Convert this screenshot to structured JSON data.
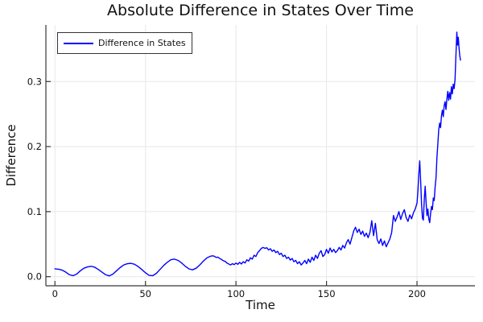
{
  "title": "Absolute Difference in States Over Time",
  "colors": {
    "series_line": "#0000ff",
    "grid": "#e7e7e7",
    "spine": "#36363a",
    "text": "#111111",
    "legend_border": "#333333",
    "background": "#ffffff"
  },
  "chart_data": {
    "type": "line",
    "title": "Absolute Difference in States Over Time",
    "xlabel": "Time",
    "ylabel": "Difference",
    "xlim": [
      -5,
      232
    ],
    "ylim": [
      -0.014,
      0.387
    ],
    "xticks": [
      0,
      50,
      100,
      150,
      200
    ],
    "xtick_labels": [
      "0",
      "50",
      "100",
      "150",
      "200"
    ],
    "yticks": [
      0.0,
      0.1,
      0.2,
      0.3
    ],
    "ytick_labels": [
      "0.0",
      "0.1",
      "0.2",
      "0.3"
    ],
    "grid": true,
    "legend_position": "top-left",
    "series": [
      {
        "name": "Difference in States",
        "color": "#0000ff",
        "points": [
          [
            0,
            0.012
          ],
          [
            2,
            0.0115
          ],
          [
            4,
            0.01
          ],
          [
            6,
            0.007
          ],
          [
            8,
            0.003
          ],
          [
            10,
            0.0015
          ],
          [
            12,
            0.004
          ],
          [
            14,
            0.009
          ],
          [
            16,
            0.013
          ],
          [
            18,
            0.015
          ],
          [
            20,
            0.016
          ],
          [
            22,
            0.0145
          ],
          [
            24,
            0.011
          ],
          [
            26,
            0.007
          ],
          [
            28,
            0.003
          ],
          [
            30,
            0.0012
          ],
          [
            32,
            0.004
          ],
          [
            34,
            0.009
          ],
          [
            36,
            0.014
          ],
          [
            38,
            0.018
          ],
          [
            40,
            0.02
          ],
          [
            42,
            0.0205
          ],
          [
            44,
            0.019
          ],
          [
            46,
            0.0155
          ],
          [
            48,
            0.011
          ],
          [
            50,
            0.006
          ],
          [
            52,
            0.002
          ],
          [
            54,
            0.0015
          ],
          [
            56,
            0.005
          ],
          [
            58,
            0.011
          ],
          [
            60,
            0.017
          ],
          [
            62,
            0.022
          ],
          [
            64,
            0.026
          ],
          [
            66,
            0.027
          ],
          [
            68,
            0.025
          ],
          [
            70,
            0.021
          ],
          [
            72,
            0.016
          ],
          [
            74,
            0.012
          ],
          [
            76,
            0.0105
          ],
          [
            78,
            0.013
          ],
          [
            80,
            0.018
          ],
          [
            82,
            0.024
          ],
          [
            84,
            0.029
          ],
          [
            86,
            0.0315
          ],
          [
            87,
            0.032
          ],
          [
            88,
            0.0315
          ],
          [
            89,
            0.0295
          ],
          [
            90,
            0.03
          ],
          [
            91,
            0.028
          ],
          [
            92,
            0.0265
          ],
          [
            93,
            0.0245
          ],
          [
            94,
            0.0235
          ],
          [
            95,
            0.021
          ],
          [
            96,
            0.0195
          ],
          [
            97,
            0.018
          ],
          [
            98,
            0.02
          ],
          [
            99,
            0.0185
          ],
          [
            100,
            0.021
          ],
          [
            101,
            0.019
          ],
          [
            102,
            0.022
          ],
          [
            103,
            0.0195
          ],
          [
            104,
            0.023
          ],
          [
            105,
            0.021
          ],
          [
            106,
            0.026
          ],
          [
            107,
            0.024
          ],
          [
            108,
            0.029
          ],
          [
            109,
            0.027
          ],
          [
            110,
            0.033
          ],
          [
            111,
            0.031
          ],
          [
            112,
            0.037
          ],
          [
            113,
            0.04
          ],
          [
            114,
            0.0435
          ],
          [
            115,
            0.045
          ],
          [
            116,
            0.0435
          ],
          [
            117,
            0.0445
          ],
          [
            118,
            0.041
          ],
          [
            119,
            0.043
          ],
          [
            120,
            0.039
          ],
          [
            121,
            0.041
          ],
          [
            122,
            0.037
          ],
          [
            123,
            0.039
          ],
          [
            124,
            0.034
          ],
          [
            125,
            0.036
          ],
          [
            126,
            0.031
          ],
          [
            127,
            0.033
          ],
          [
            128,
            0.028
          ],
          [
            129,
            0.03
          ],
          [
            130,
            0.0255
          ],
          [
            131,
            0.028
          ],
          [
            132,
            0.023
          ],
          [
            133,
            0.025
          ],
          [
            134,
            0.02
          ],
          [
            135,
            0.023
          ],
          [
            136,
            0.018
          ],
          [
            137,
            0.021
          ],
          [
            138,
            0.025
          ],
          [
            139,
            0.02
          ],
          [
            140,
            0.027
          ],
          [
            141,
            0.022
          ],
          [
            142,
            0.03
          ],
          [
            143,
            0.025
          ],
          [
            144,
            0.033
          ],
          [
            145,
            0.028
          ],
          [
            146,
            0.036
          ],
          [
            147,
            0.04
          ],
          [
            148,
            0.031
          ],
          [
            149,
            0.034
          ],
          [
            150,
            0.042
          ],
          [
            151,
            0.036
          ],
          [
            152,
            0.044
          ],
          [
            153,
            0.038
          ],
          [
            154,
            0.042
          ],
          [
            155,
            0.037
          ],
          [
            156,
            0.04
          ],
          [
            157,
            0.045
          ],
          [
            158,
            0.041
          ],
          [
            159,
            0.048
          ],
          [
            160,
            0.044
          ],
          [
            161,
            0.052
          ],
          [
            162,
            0.057
          ],
          [
            163,
            0.05
          ],
          [
            164,
            0.06
          ],
          [
            165,
            0.07
          ],
          [
            166,
            0.076
          ],
          [
            167,
            0.068
          ],
          [
            168,
            0.073
          ],
          [
            169,
            0.065
          ],
          [
            170,
            0.07
          ],
          [
            171,
            0.062
          ],
          [
            172,
            0.067
          ],
          [
            173,
            0.06
          ],
          [
            174,
            0.068
          ],
          [
            175,
            0.086
          ],
          [
            176,
            0.063
          ],
          [
            177,
            0.082
          ],
          [
            178,
            0.057
          ],
          [
            179,
            0.051
          ],
          [
            180,
            0.058
          ],
          [
            181,
            0.048
          ],
          [
            182,
            0.055
          ],
          [
            183,
            0.046
          ],
          [
            184,
            0.052
          ],
          [
            185,
            0.058
          ],
          [
            186,
            0.068
          ],
          [
            187,
            0.094
          ],
          [
            188,
            0.085
          ],
          [
            189,
            0.092
          ],
          [
            190,
            0.1
          ],
          [
            191,
            0.088
          ],
          [
            192,
            0.097
          ],
          [
            193,
            0.103
          ],
          [
            194,
            0.091
          ],
          [
            195,
            0.085
          ],
          [
            196,
            0.095
          ],
          [
            197,
            0.089
          ],
          [
            198,
            0.098
          ],
          [
            199,
            0.104
          ],
          [
            200,
            0.113
          ],
          [
            200.5,
            0.132
          ],
          [
            201,
            0.158
          ],
          [
            201.5,
            0.178
          ],
          [
            202,
            0.148
          ],
          [
            202.5,
            0.112
          ],
          [
            203,
            0.09
          ],
          [
            203.5,
            0.087
          ],
          [
            204,
            0.118
          ],
          [
            204.5,
            0.139
          ],
          [
            205,
            0.115
          ],
          [
            205.5,
            0.094
          ],
          [
            206,
            0.104
          ],
          [
            206.5,
            0.089
          ],
          [
            207,
            0.083
          ],
          [
            207.5,
            0.097
          ],
          [
            208,
            0.108
          ],
          [
            208.5,
            0.103
          ],
          [
            209,
            0.121
          ],
          [
            209.5,
            0.117
          ],
          [
            210,
            0.138
          ],
          [
            210.5,
            0.152
          ],
          [
            211,
            0.183
          ],
          [
            211.5,
            0.204
          ],
          [
            212,
            0.226
          ],
          [
            212.5,
            0.236
          ],
          [
            213,
            0.229
          ],
          [
            213.5,
            0.247
          ],
          [
            214,
            0.256
          ],
          [
            214.5,
            0.246
          ],
          [
            215,
            0.263
          ],
          [
            215.5,
            0.269
          ],
          [
            216,
            0.257
          ],
          [
            216.5,
            0.273
          ],
          [
            217,
            0.285
          ],
          [
            217.5,
            0.271
          ],
          [
            218,
            0.283
          ],
          [
            218.5,
            0.273
          ],
          [
            219,
            0.292
          ],
          [
            219.5,
            0.281
          ],
          [
            220,
            0.296
          ],
          [
            220.5,
            0.289
          ],
          [
            221,
            0.303
          ],
          [
            221.5,
            0.341
          ],
          [
            222,
            0.376
          ],
          [
            222.4,
            0.356
          ],
          [
            222.8,
            0.368
          ],
          [
            223.2,
            0.352
          ],
          [
            223.6,
            0.34
          ],
          [
            224,
            0.333
          ]
        ]
      }
    ]
  }
}
